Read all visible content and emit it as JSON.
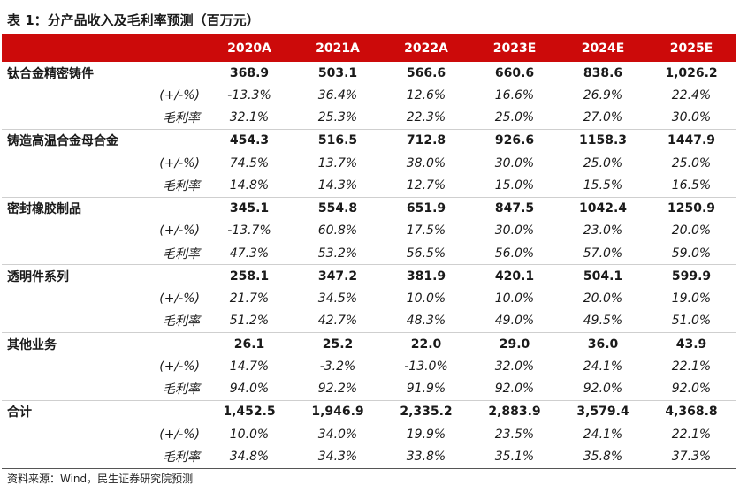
{
  "title": "表 1：分产品收入及毛利率预测（百万元）",
  "header": {
    "columns": [
      "2020A",
      "2021A",
      "2022A",
      "2023E",
      "2024E",
      "2025E"
    ]
  },
  "groups": [
    {
      "name": "钛合金精密铸件",
      "values": [
        "368.9",
        "503.1",
        "566.6",
        "660.6",
        "838.6",
        "1,026.2"
      ],
      "growth_label": "(+/-%)",
      "growth": [
        "-13.3%",
        "36.4%",
        "12.6%",
        "16.6%",
        "26.9%",
        "22.4%"
      ],
      "margin_label": "毛利率",
      "margin": [
        "32.1%",
        "25.3%",
        "22.3%",
        "25.0%",
        "27.0%",
        "30.0%"
      ]
    },
    {
      "name": "铸造高温合金母合金",
      "values": [
        "454.3",
        "516.5",
        "712.8",
        "926.6",
        "1158.3",
        "1447.9"
      ],
      "growth_label": "(+/-%)",
      "growth": [
        "74.5%",
        "13.7%",
        "38.0%",
        "30.0%",
        "25.0%",
        "25.0%"
      ],
      "margin_label": "毛利率",
      "margin": [
        "14.8%",
        "14.3%",
        "12.7%",
        "15.0%",
        "15.5%",
        "16.5%"
      ]
    },
    {
      "name": "密封橡胶制品",
      "values": [
        "345.1",
        "554.8",
        "651.9",
        "847.5",
        "1042.4",
        "1250.9"
      ],
      "growth_label": "(+/-%)",
      "growth": [
        "-13.7%",
        "60.8%",
        "17.5%",
        "30.0%",
        "23.0%",
        "20.0%"
      ],
      "margin_label": "毛利率",
      "margin": [
        "47.3%",
        "53.2%",
        "56.5%",
        "56.0%",
        "57.0%",
        "59.0%"
      ]
    },
    {
      "name": "透明件系列",
      "values": [
        "258.1",
        "347.2",
        "381.9",
        "420.1",
        "504.1",
        "599.9"
      ],
      "growth_label": "(+/-%)",
      "growth": [
        "21.7%",
        "34.5%",
        "10.0%",
        "10.0%",
        "20.0%",
        "19.0%"
      ],
      "margin_label": "毛利率",
      "margin": [
        "51.2%",
        "42.7%",
        "48.3%",
        "49.0%",
        "49.5%",
        "51.0%"
      ]
    },
    {
      "name": "其他业务",
      "values": [
        "26.1",
        "25.2",
        "22.0",
        "29.0",
        "36.0",
        "43.9"
      ],
      "growth_label": "(+/-%)",
      "growth": [
        "14.7%",
        "-3.2%",
        "-13.0%",
        "32.0%",
        "24.1%",
        "22.1%"
      ],
      "margin_label": "毛利率",
      "margin": [
        "94.0%",
        "92.2%",
        "91.9%",
        "92.0%",
        "92.0%",
        "92.0%"
      ]
    },
    {
      "name": "合计",
      "values": [
        "1,452.5",
        "1,946.9",
        "2,335.2",
        "2,883.9",
        "3,579.4",
        "4,368.8"
      ],
      "growth_label": "(+/-%)",
      "growth": [
        "10.0%",
        "34.0%",
        "19.9%",
        "23.5%",
        "24.1%",
        "22.1%"
      ],
      "margin_label": "毛利率",
      "margin": [
        "34.8%",
        "34.3%",
        "33.8%",
        "35.1%",
        "35.8%",
        "37.3%"
      ]
    }
  ],
  "source": "资料来源：Wind，民生证券研究院预测",
  "colors": {
    "header_bg": "#cc0a0a",
    "header_text": "#ffffff"
  }
}
